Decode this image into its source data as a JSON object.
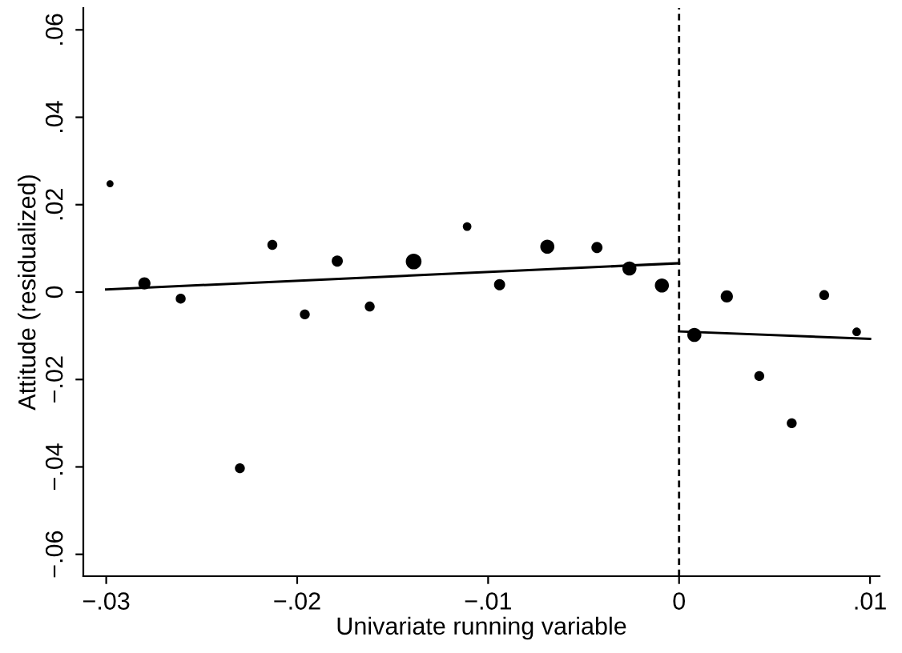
{
  "chart_data": {
    "type": "bubble",
    "xlabel": "Univariate running variable",
    "ylabel": "Attitude (residualized)",
    "xlim": [
      -0.0312,
      0.0105
    ],
    "ylim": [
      -0.065,
      0.065
    ],
    "xticks": [
      {
        "value": -0.03,
        "label": "−.03"
      },
      {
        "value": -0.02,
        "label": "−.02"
      },
      {
        "value": -0.01,
        "label": "−.01"
      },
      0,
      {
        "value": 0.01,
        "label": ".01"
      }
    ],
    "yticks": [
      {
        "value": -0.06,
        "label": "−.06"
      },
      {
        "value": -0.04,
        "label": "−.04"
      },
      {
        "value": -0.02,
        "label": "−.02"
      },
      0,
      {
        "value": 0.02,
        "label": ".02"
      },
      {
        "value": 0.04,
        "label": ".04"
      },
      {
        "value": 0.06,
        "label": ".06"
      }
    ],
    "grid": false,
    "legend": false,
    "series": [
      {
        "color": "#000000",
        "x": [
          -0.0298,
          -0.028,
          -0.0261,
          -0.023,
          -0.0213,
          -0.0196,
          -0.0179,
          -0.0162,
          -0.0139,
          -0.0111,
          -0.0094,
          -0.0069,
          -0.0043,
          -0.0026,
          -0.0009,
          0.0008,
          0.0025,
          0.0042,
          0.0059,
          0.0076,
          0.0093
        ],
        "values": [
          0.0248,
          0.002,
          -0.0015,
          -0.0403,
          0.0108,
          -0.0051,
          0.0071,
          -0.0033,
          0.007,
          0.015,
          0.0017,
          0.0104,
          0.0102,
          0.0054,
          0.0015,
          -0.0098,
          -0.001,
          -0.0192,
          -0.03,
          -0.0007,
          -0.0091
        ],
        "sizes": [
          0.2,
          0.6,
          0.4,
          0.4,
          0.4,
          0.4,
          0.5,
          0.4,
          1,
          0.3,
          0.5,
          0.8,
          0.5,
          0.8,
          0.8,
          0.8,
          0.6,
          0.4,
          0.4,
          0.4,
          0.3
        ]
      },
      {
        "type": "line",
        "color": "#000000",
        "x": [
          -0.03,
          0
        ],
        "values": [
          0.0006,
          0.0066
        ]
      },
      {
        "type": "line",
        "color": "#000000",
        "x": [
          0,
          0.01
        ],
        "values": [
          -0.009,
          -0.0107
        ]
      }
    ],
    "ref_lines": [
      {
        "axis": "x",
        "value": 0,
        "line_style": "dashed",
        "color": "#000000"
      }
    ]
  }
}
